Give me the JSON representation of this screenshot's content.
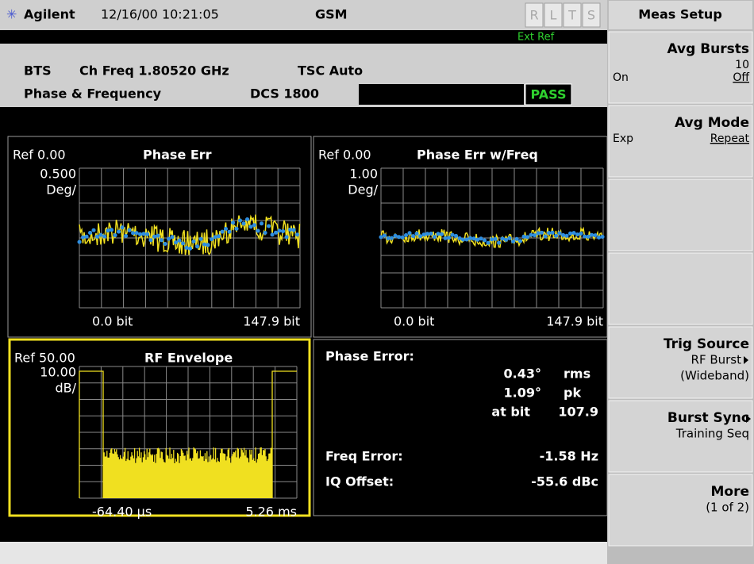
{
  "header": {
    "logo": "Agilent",
    "datetime": "12/16/00 10:21:05",
    "mode": "GSM",
    "indicators": [
      "R",
      "L",
      "T",
      "S"
    ],
    "ext_ref": "Ext Ref"
  },
  "info": {
    "line1": [
      "BTS",
      "Ch Freq 1.80520 GHz",
      "TSC Auto"
    ],
    "line2": [
      "Phase & Frequency",
      "DCS 1800"
    ],
    "status": "PASS"
  },
  "panels": [
    {
      "ref": "Ref 0.00",
      "title": "Phase Err",
      "scale": "0.500",
      "unit": "Deg/",
      "x_start": "0.0 bit",
      "x_end": "147.9 bit"
    },
    {
      "ref": "Ref 0.00",
      "title": "Phase Err w/Freq",
      "scale": "1.00",
      "unit": "Deg/",
      "x_start": "0.0 bit",
      "x_end": "147.9 bit"
    },
    {
      "ref": "Ref 50.00",
      "title": "RF Envelope",
      "scale": "10.00",
      "unit": "dB/",
      "x_start": "-64.40 µs",
      "x_end": "5.26 ms"
    }
  ],
  "metrics": {
    "phase_error_label": "Phase Error:",
    "rms_value": "0.43°",
    "rms_label": "rms",
    "pk_value": "1.09°",
    "pk_label": "pk",
    "at_bit_label": "at bit",
    "at_bit_value": "107.9",
    "freq_error_label": "Freq Error:",
    "freq_error_value": "-1.58 Hz",
    "iq_offset_label": "IQ Offset:",
    "iq_offset_value": "-55.6 dBc"
  },
  "softkeys": {
    "menu_title": "Meas Setup",
    "keys": [
      {
        "title": "Avg Bursts",
        "value": "10",
        "left": "On",
        "right": "Off"
      },
      {
        "title": "Avg Mode",
        "left": "Exp",
        "right": "Repeat"
      },
      {
        "title": "Trig Source",
        "line2": "RF Burst",
        "line3": "(Wideband)"
      },
      {
        "title": "Burst Sync",
        "line2": "Training Seq"
      },
      {
        "title": "More",
        "line2": "(1 of 2)"
      }
    ]
  }
}
